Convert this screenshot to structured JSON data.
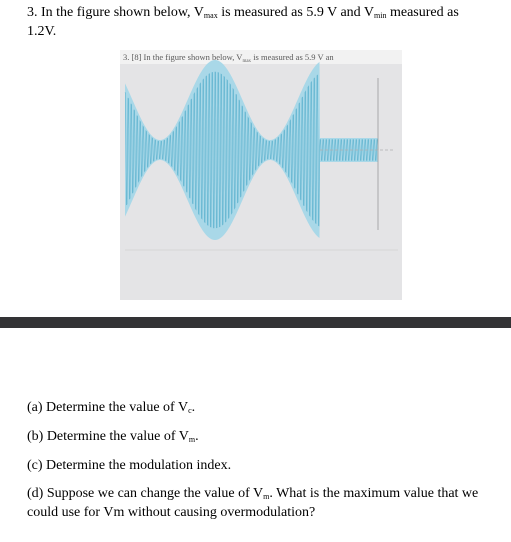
{
  "question": [
    "3. In the figure shown below, V",
    "max",
    " is measured as 5.9 V and V",
    "min",
    " measured as",
    "1.2V."
  ],
  "figure_caption": [
    "3.  [8] In the figure shown below, V",
    "max",
    " is measured as 5.9 V an"
  ],
  "parts": [
    [
      "(a) Determine the value of V",
      "c",
      "."
    ],
    [
      "(b) Determine the value of V",
      "m",
      "."
    ],
    [
      "(c) Determine the modulation index."
    ],
    [
      "(d) Suppose we can change the value of V",
      "m",
      ". What is the maximum value that we",
      "could use for Vm without causing overmodulation?"
    ]
  ]
}
